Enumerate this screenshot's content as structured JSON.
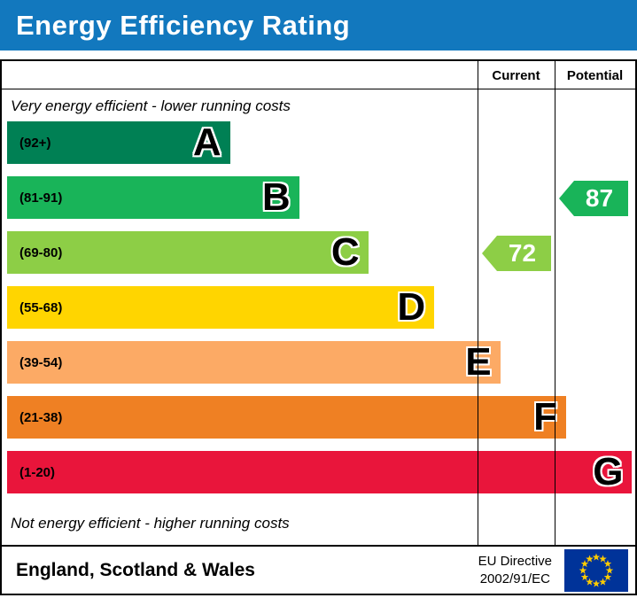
{
  "title": "Energy Efficiency Rating",
  "columns": {
    "current": "Current",
    "potential": "Potential"
  },
  "notes": {
    "top": "Very energy efficient - lower running costs",
    "bottom": "Not energy efficient - higher running costs"
  },
  "chart_data": {
    "type": "bar",
    "title": "Energy Efficiency Rating",
    "bands": [
      {
        "letter": "A",
        "range": "(92+)",
        "color": "#008054",
        "width_pct": 35.5
      },
      {
        "letter": "B",
        "range": "(81-91)",
        "color": "#19b459",
        "width_pct": 46.5
      },
      {
        "letter": "C",
        "range": "(69-80)",
        "color": "#8dce46",
        "width_pct": 57.5
      },
      {
        "letter": "D",
        "range": "(55-68)",
        "color": "#ffd500",
        "width_pct": 68.0
      },
      {
        "letter": "E",
        "range": "(39-54)",
        "color": "#fcaa65",
        "width_pct": 78.5
      },
      {
        "letter": "F",
        "range": "(21-38)",
        "color": "#ef8023",
        "width_pct": 89.0
      },
      {
        "letter": "G",
        "range": "(1-20)",
        "color": "#e9153b",
        "width_pct": 99.5
      }
    ],
    "ratings": {
      "current": {
        "value": "72",
        "band": "C",
        "band_index": 2,
        "color": "#8dce46"
      },
      "potential": {
        "value": "87",
        "band": "B",
        "band_index": 1,
        "color": "#19b459"
      }
    }
  },
  "footer": {
    "region": "England, Scotland & Wales",
    "directive_line1": "EU Directive",
    "directive_line2": "2002/91/EC"
  },
  "colors": {
    "header_bg": "#1278be",
    "flag_bg": "#003399",
    "flag_stars": "#ffcc00"
  }
}
